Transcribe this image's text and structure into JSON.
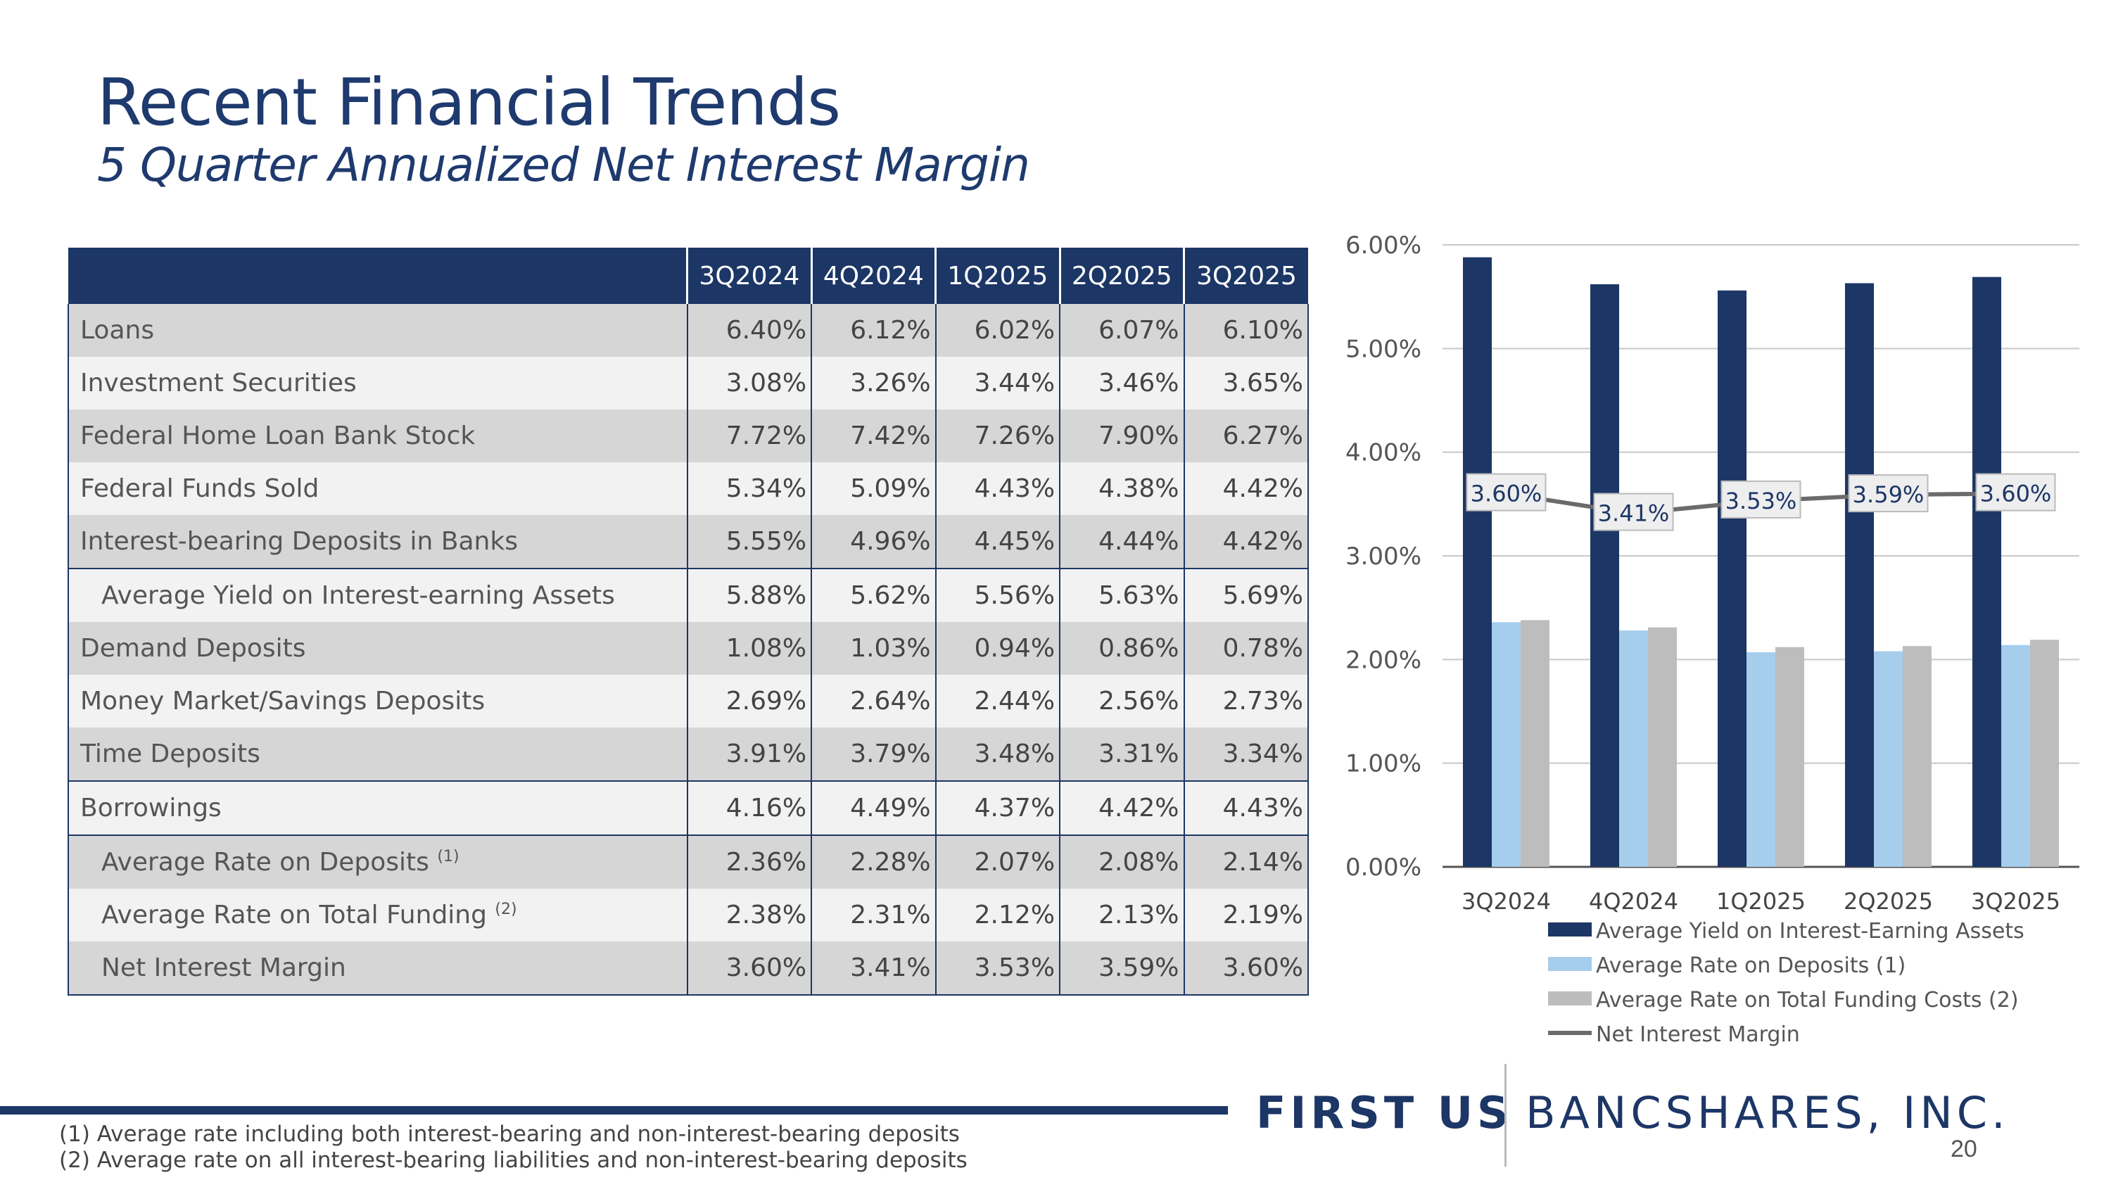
{
  "title": "Recent Financial Trends",
  "subtitle": "5 Quarter Annualized Net Interest Margin",
  "table": {
    "headers": [
      "3Q2024",
      "4Q2024",
      "1Q2025",
      "2Q2025",
      "3Q2025"
    ],
    "rows": [
      {
        "label": "Loans",
        "values": [
          "6.40%",
          "6.12%",
          "6.02%",
          "6.07%",
          "6.10%"
        ]
      },
      {
        "label": "Investment Securities",
        "values": [
          "3.08%",
          "3.26%",
          "3.44%",
          "3.46%",
          "3.65%"
        ]
      },
      {
        "label": "Federal Home Loan Bank Stock",
        "values": [
          "7.72%",
          "7.42%",
          "7.26%",
          "7.90%",
          "6.27%"
        ]
      },
      {
        "label": "Federal Funds Sold",
        "values": [
          "5.34%",
          "5.09%",
          "4.43%",
          "4.38%",
          "4.42%"
        ]
      },
      {
        "label": "Interest-bearing Deposits in Banks",
        "values": [
          "5.55%",
          "4.96%",
          "4.45%",
          "4.44%",
          "4.42%"
        ]
      },
      {
        "label": "Average Yield on Interest-earning Assets",
        "values": [
          "5.88%",
          "5.62%",
          "5.56%",
          "5.63%",
          "5.69%"
        ]
      },
      {
        "label": "Demand Deposits",
        "values": [
          "1.08%",
          "1.03%",
          "0.94%",
          "0.86%",
          "0.78%"
        ]
      },
      {
        "label": "Money Market/Savings Deposits",
        "values": [
          "2.69%",
          "2.64%",
          "2.44%",
          "2.56%",
          "2.73%"
        ]
      },
      {
        "label": "Time Deposits",
        "values": [
          "3.91%",
          "3.79%",
          "3.48%",
          "3.31%",
          "3.34%"
        ]
      },
      {
        "label": "Borrowings",
        "values": [
          "4.16%",
          "4.49%",
          "4.37%",
          "4.42%",
          "4.43%"
        ]
      },
      {
        "label": "Average Rate on Deposits",
        "sup": "(1)",
        "values": [
          "2.36%",
          "2.28%",
          "2.07%",
          "2.08%",
          "2.14%"
        ]
      },
      {
        "label": "Average Rate on Total Funding",
        "sup": "(2)",
        "values": [
          "2.38%",
          "2.31%",
          "2.12%",
          "2.13%",
          "2.19%"
        ]
      },
      {
        "label": "Net Interest Margin",
        "values": [
          "3.60%",
          "3.41%",
          "3.53%",
          "3.59%",
          "3.60%"
        ]
      }
    ]
  },
  "chart_data": {
    "type": "bar",
    "categories": [
      "3Q2024",
      "4Q2024",
      "1Q2025",
      "2Q2025",
      "3Q2025"
    ],
    "series": [
      {
        "name": "Average Yield on Interest-Earning Assets",
        "kind": "bar",
        "color": "#1c3666",
        "values": [
          5.88,
          5.62,
          5.56,
          5.63,
          5.69
        ]
      },
      {
        "name": "Average Rate on Deposits (1)",
        "kind": "bar",
        "color": "#a6cdec",
        "values": [
          2.36,
          2.28,
          2.07,
          2.08,
          2.14
        ]
      },
      {
        "name": "Average Rate on Total Funding Costs (2)",
        "kind": "bar",
        "color": "#bdbdbd",
        "values": [
          2.38,
          2.31,
          2.12,
          2.13,
          2.19
        ]
      },
      {
        "name": "Net Interest Margin",
        "kind": "line",
        "color": "#6b6b6b",
        "values": [
          3.6,
          3.41,
          3.53,
          3.59,
          3.6
        ]
      }
    ],
    "line_labels": [
      "3.60%",
      "3.41%",
      "3.53%",
      "3.59%",
      "3.60%"
    ],
    "y_ticks": [
      "0.00%",
      "1.00%",
      "2.00%",
      "3.00%",
      "4.00%",
      "5.00%",
      "6.00%"
    ],
    "ylim": [
      0,
      6
    ],
    "grid": true,
    "legend_position": "bottom"
  },
  "footnotes": [
    "(1)  Average rate including both interest-bearing and non-interest-bearing deposits",
    "(2)  Average rate on all interest-bearing liabilities and non-interest-bearing deposits"
  ],
  "logo": {
    "first": "FIRST US",
    "banc": "BANCSHARES, INC."
  },
  "page_number": "20"
}
